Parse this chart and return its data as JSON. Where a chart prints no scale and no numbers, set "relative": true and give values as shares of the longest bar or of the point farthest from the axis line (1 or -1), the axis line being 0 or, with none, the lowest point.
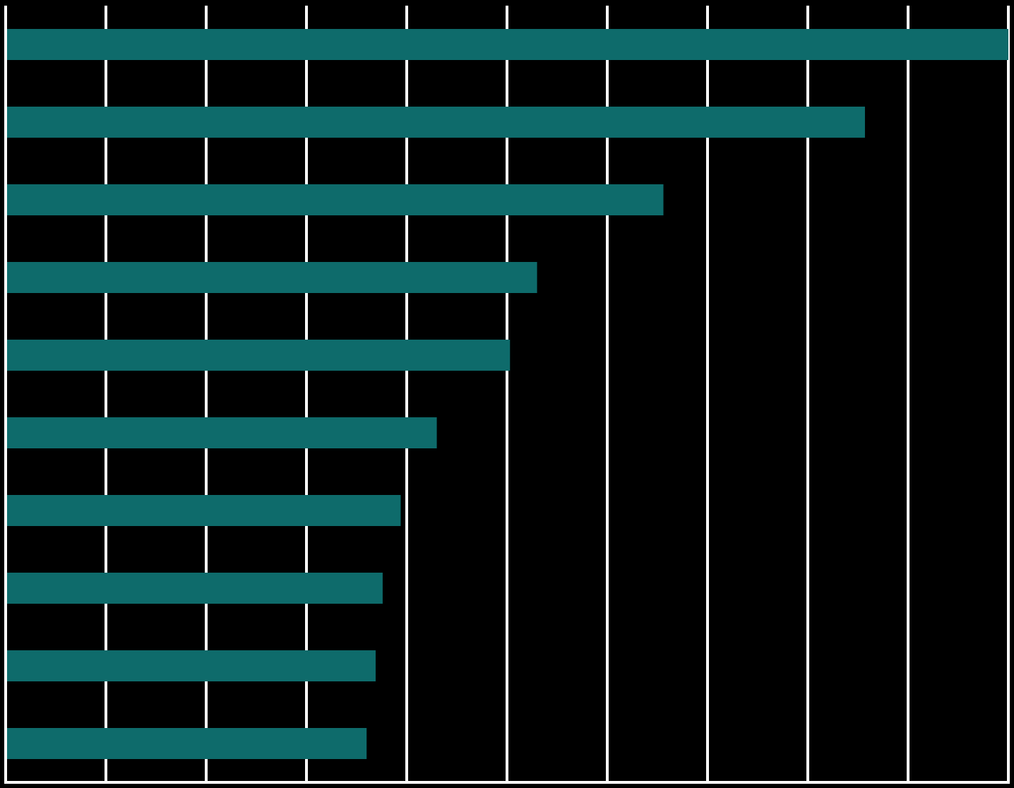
{
  "chart_data": {
    "type": "bar",
    "orientation": "horizontal",
    "relative": true,
    "grid": "x",
    "categories": [
      null,
      null,
      null,
      null,
      null,
      null,
      null,
      null,
      null,
      null
    ],
    "values": [
      1,
      0.857,
      0.656,
      0.53,
      0.503,
      0.43,
      0.394,
      0.376,
      0.369,
      0.36
    ],
    "color": "#0e6b6b"
  }
}
